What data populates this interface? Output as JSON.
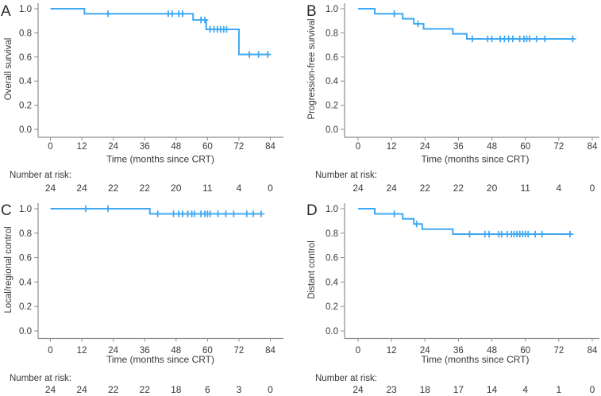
{
  "figure": {
    "background": "#ffffff",
    "curve_color": "#3fa8f2",
    "axis_color": "#8c8c8c",
    "text_color": "#383838",
    "letter_color": "#2a2a2a"
  },
  "chart_data": [
    {
      "type": "line",
      "subtype": "kaplan_meier_step",
      "panel": "A",
      "ylabel": "Overall survival",
      "xlabel": "Time (months since CRT)",
      "x_ticks": [
        0,
        12,
        24,
        36,
        48,
        60,
        72,
        84
      ],
      "y_ticks": [
        1.0,
        0.8,
        0.6,
        0.4,
        0.2,
        0.0
      ],
      "xlim": [
        0,
        84
      ],
      "ylim": [
        0,
        1
      ],
      "grid": false,
      "curve": {
        "start_t": 0,
        "start_s": 1.0,
        "end_t": 84,
        "drops": [
          [
            13,
            0.958
          ],
          [
            54.5,
            0.907
          ],
          [
            59.5,
            0.829
          ],
          [
            72,
            0.621
          ]
        ]
      },
      "censors": [
        [
          22,
          0.958
        ],
        [
          45,
          0.958
        ],
        [
          46.5,
          0.958
        ],
        [
          49,
          0.958
        ],
        [
          50.5,
          0.958
        ],
        [
          57.5,
          0.907
        ],
        [
          59,
          0.907
        ],
        [
          61,
          0.829
        ],
        [
          62.5,
          0.829
        ],
        [
          63.8,
          0.829
        ],
        [
          65,
          0.829
        ],
        [
          66.2,
          0.829
        ],
        [
          67.3,
          0.829
        ],
        [
          76,
          0.621
        ],
        [
          79.5,
          0.621
        ],
        [
          83,
          0.621
        ]
      ],
      "risk_label": "Number at risk:",
      "number_at_risk": [
        24,
        24,
        22,
        22,
        20,
        11,
        4,
        0
      ]
    },
    {
      "type": "line",
      "subtype": "kaplan_meier_step",
      "panel": "B",
      "ylabel": "Progression-free survival",
      "xlabel": "Time (months since CRT)",
      "x_ticks": [
        0,
        12,
        24,
        36,
        48,
        60,
        72,
        84
      ],
      "y_ticks": [
        1.0,
        0.8,
        0.6,
        0.4,
        0.2,
        0.0
      ],
      "xlim": [
        0,
        84
      ],
      "ylim": [
        0,
        1
      ],
      "grid": false,
      "curve": {
        "start_t": 0,
        "start_s": 1.0,
        "end_t": 77,
        "drops": [
          [
            6,
            0.958
          ],
          [
            16,
            0.917
          ],
          [
            20,
            0.875
          ],
          [
            23.5,
            0.833
          ],
          [
            34,
            0.792
          ],
          [
            39,
            0.75
          ]
        ]
      },
      "censors": [
        [
          13,
          0.958
        ],
        [
          21.5,
          0.875
        ],
        [
          41,
          0.75
        ],
        [
          46.5,
          0.75
        ],
        [
          48,
          0.75
        ],
        [
          51,
          0.75
        ],
        [
          52.5,
          0.75
        ],
        [
          54,
          0.75
        ],
        [
          55.5,
          0.75
        ],
        [
          58,
          0.75
        ],
        [
          59.5,
          0.75
        ],
        [
          60.5,
          0.75
        ],
        [
          61.5,
          0.75
        ],
        [
          64,
          0.75
        ],
        [
          67,
          0.75
        ],
        [
          77,
          0.75
        ]
      ],
      "risk_label": "Number at risk:",
      "number_at_risk": [
        24,
        24,
        22,
        22,
        20,
        11,
        4,
        0
      ]
    },
    {
      "type": "line",
      "subtype": "kaplan_meier_step",
      "panel": "C",
      "ylabel": "Local/regional control",
      "xlabel": "Time (months since CRT)",
      "x_ticks": [
        0,
        12,
        24,
        36,
        48,
        60,
        72,
        84
      ],
      "y_ticks": [
        1.0,
        0.8,
        0.6,
        0.4,
        0.2,
        0.0
      ],
      "xlim": [
        0,
        84
      ],
      "ylim": [
        0,
        1
      ],
      "grid": false,
      "curve": {
        "start_t": 0,
        "start_s": 1.0,
        "end_t": 80.5,
        "drops": [
          [
            38,
            0.958
          ]
        ]
      },
      "censors": [
        [
          13.5,
          1.0
        ],
        [
          22,
          1.0
        ],
        [
          41,
          0.958
        ],
        [
          47,
          0.958
        ],
        [
          49,
          0.958
        ],
        [
          50.5,
          0.958
        ],
        [
          52.5,
          0.958
        ],
        [
          54,
          0.958
        ],
        [
          55,
          0.958
        ],
        [
          57.5,
          0.958
        ],
        [
          59,
          0.958
        ],
        [
          60,
          0.958
        ],
        [
          61,
          0.958
        ],
        [
          64,
          0.958
        ],
        [
          67,
          0.958
        ],
        [
          70,
          0.958
        ],
        [
          75,
          0.958
        ],
        [
          77.5,
          0.958
        ],
        [
          80.5,
          0.958
        ]
      ],
      "risk_label": "Number at risk:",
      "number_at_risk": [
        24,
        24,
        22,
        22,
        18,
        6,
        3,
        0
      ]
    },
    {
      "type": "line",
      "subtype": "kaplan_meier_step",
      "panel": "D",
      "ylabel": "Distant control",
      "xlabel": "Time (months since CRT)",
      "x_ticks": [
        0,
        12,
        24,
        36,
        48,
        60,
        72,
        84
      ],
      "y_ticks": [
        1.0,
        0.8,
        0.6,
        0.4,
        0.2,
        0.0
      ],
      "xlim": [
        0,
        84
      ],
      "ylim": [
        0,
        1
      ],
      "grid": false,
      "curve": {
        "start_t": 0,
        "start_s": 1.0,
        "end_t": 77,
        "drops": [
          [
            6,
            0.958
          ],
          [
            16,
            0.917
          ],
          [
            20,
            0.875
          ],
          [
            23,
            0.833
          ],
          [
            34,
            0.792
          ]
        ]
      },
      "censors": [
        [
          13,
          0.958
        ],
        [
          21,
          0.875
        ],
        [
          40,
          0.792
        ],
        [
          45.5,
          0.792
        ],
        [
          47,
          0.792
        ],
        [
          50.5,
          0.792
        ],
        [
          51.5,
          0.792
        ],
        [
          53.5,
          0.792
        ],
        [
          55,
          0.792
        ],
        [
          56,
          0.792
        ],
        [
          57,
          0.792
        ],
        [
          58,
          0.792
        ],
        [
          59,
          0.792
        ],
        [
          60,
          0.792
        ],
        [
          61,
          0.792
        ],
        [
          63.5,
          0.792
        ],
        [
          66,
          0.792
        ],
        [
          76,
          0.792
        ]
      ],
      "risk_label": "Number at risk:",
      "number_at_risk": [
        24,
        23,
        18,
        17,
        14,
        4,
        1,
        0
      ]
    }
  ]
}
